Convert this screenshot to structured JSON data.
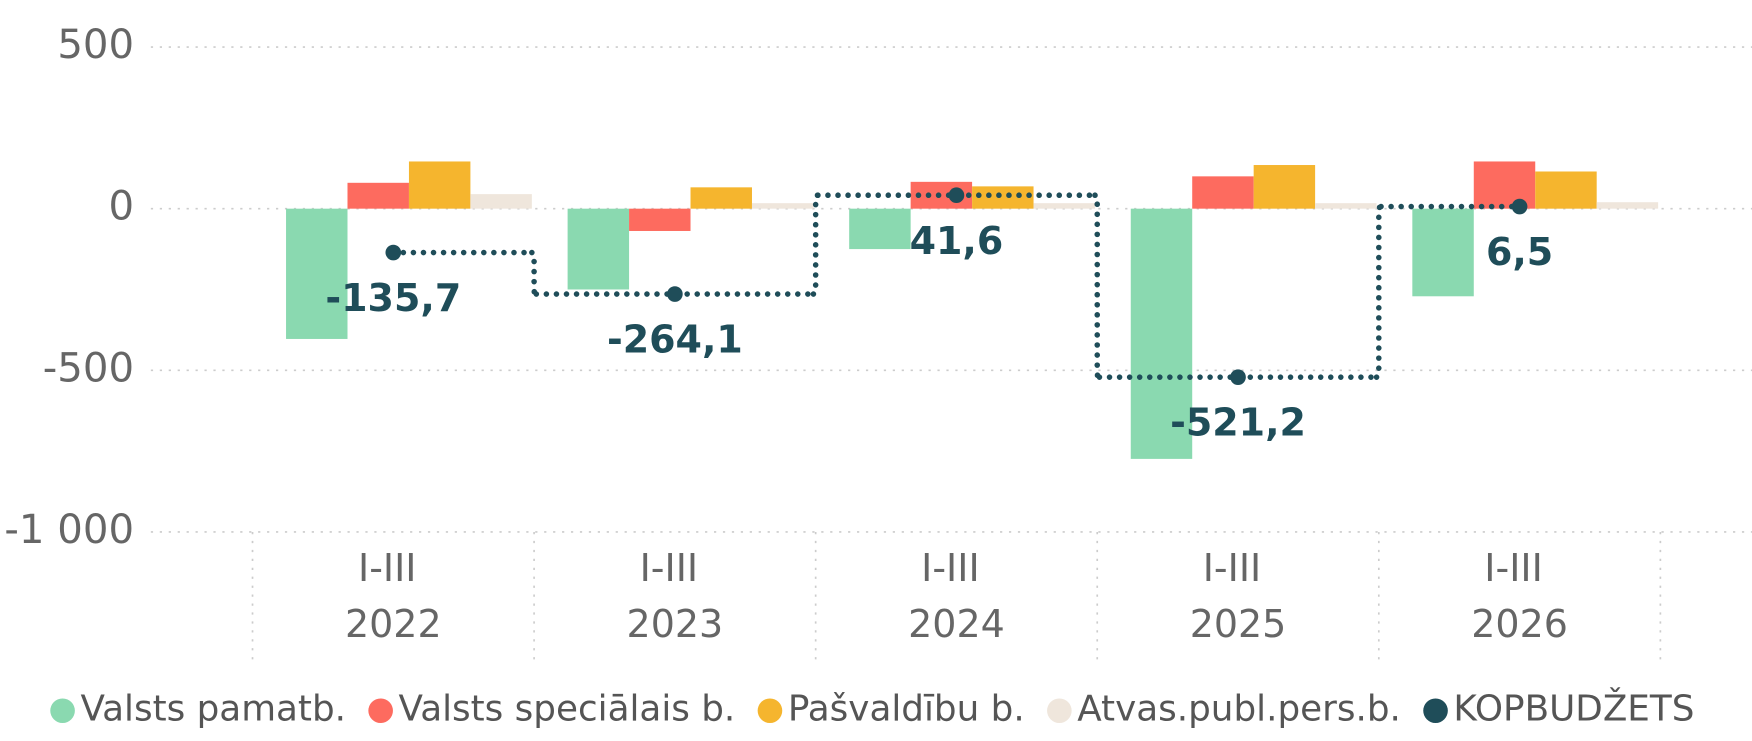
{
  "chart_data": {
    "type": "bar",
    "categories": [
      "I-III 2022",
      "I-III 2023",
      "I-III 2024",
      "I-III 2025",
      "I-III 2026"
    ],
    "series": [
      {
        "name": "Valsts pamatb.",
        "color": "#8ad9b0",
        "values": [
          -403,
          -250,
          -125,
          -774,
          -271
        ]
      },
      {
        "name": "Valsts speciālais b.",
        "color": "#fd6b5f",
        "values": [
          80,
          -69,
          83,
          100,
          146
        ]
      },
      {
        "name": "Pašvaldību b.",
        "color": "#f5b52e",
        "values": [
          146,
          66,
          69,
          135,
          115
        ]
      },
      {
        "name": "Atvas.publ.pers.b.",
        "color": "#efe6dc",
        "values": [
          45,
          17,
          17,
          17,
          20
        ]
      },
      {
        "name": "KOPBUDŽETS",
        "color": "#1f4d59",
        "type": "step",
        "values": [
          -135.7,
          -264.1,
          41.6,
          -521.2,
          6.5
        ],
        "value_labels": [
          "-135,7",
          "-264,1",
          "41,6",
          "-521,2",
          "6,5"
        ]
      }
    ],
    "ylim": [
      -1000,
      500
    ],
    "yticks": [
      {
        "value": -1000,
        "label": "-1 000"
      },
      -500,
      0,
      500
    ],
    "grid": true,
    "legend": "bottom"
  }
}
